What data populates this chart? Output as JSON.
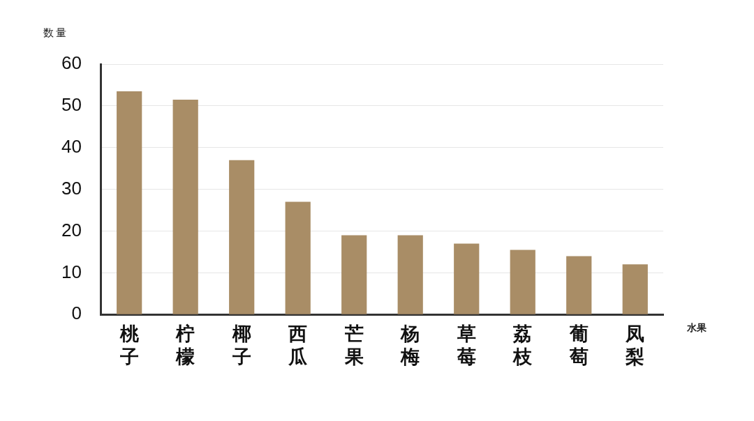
{
  "chart_data": {
    "type": "bar",
    "xlabel": "水果",
    "ylabel": "数量",
    "categories": [
      "桃子",
      "柠檬",
      "椰子",
      "西瓜",
      "芒果",
      "杨梅",
      "草莓",
      "荔枝",
      "葡萄",
      "凤梨"
    ],
    "values": [
      53.5,
      51.5,
      37,
      27,
      19,
      19,
      17,
      15.5,
      14,
      12
    ],
    "color": "#a98d66",
    "ylim": [
      0,
      60
    ],
    "yticks": [
      0,
      10,
      20,
      30,
      40,
      50,
      60
    ],
    "grid": "y",
    "legend": false
  }
}
